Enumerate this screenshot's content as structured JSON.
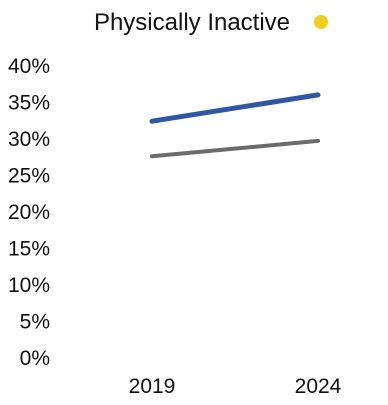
{
  "chart_data": {
    "type": "line",
    "title": "Physically Inactive",
    "title_marker_color": "#F2CF1C",
    "xlabel": "",
    "ylabel": "",
    "x": [
      "2019",
      "2024"
    ],
    "ylim": [
      0,
      40
    ],
    "y_ticks": [
      "0%",
      "5%",
      "10%",
      "15%",
      "20%",
      "25%",
      "30%",
      "35%",
      "40%"
    ],
    "y_tick_values": [
      0,
      5,
      10,
      15,
      20,
      25,
      30,
      35,
      40
    ],
    "grid": false,
    "series": [
      {
        "color": "#2F57A6",
        "values": [
          32.3,
          35.9
        ]
      },
      {
        "color": "#6B6B6B",
        "values": [
          27.5,
          29.6
        ]
      }
    ]
  }
}
